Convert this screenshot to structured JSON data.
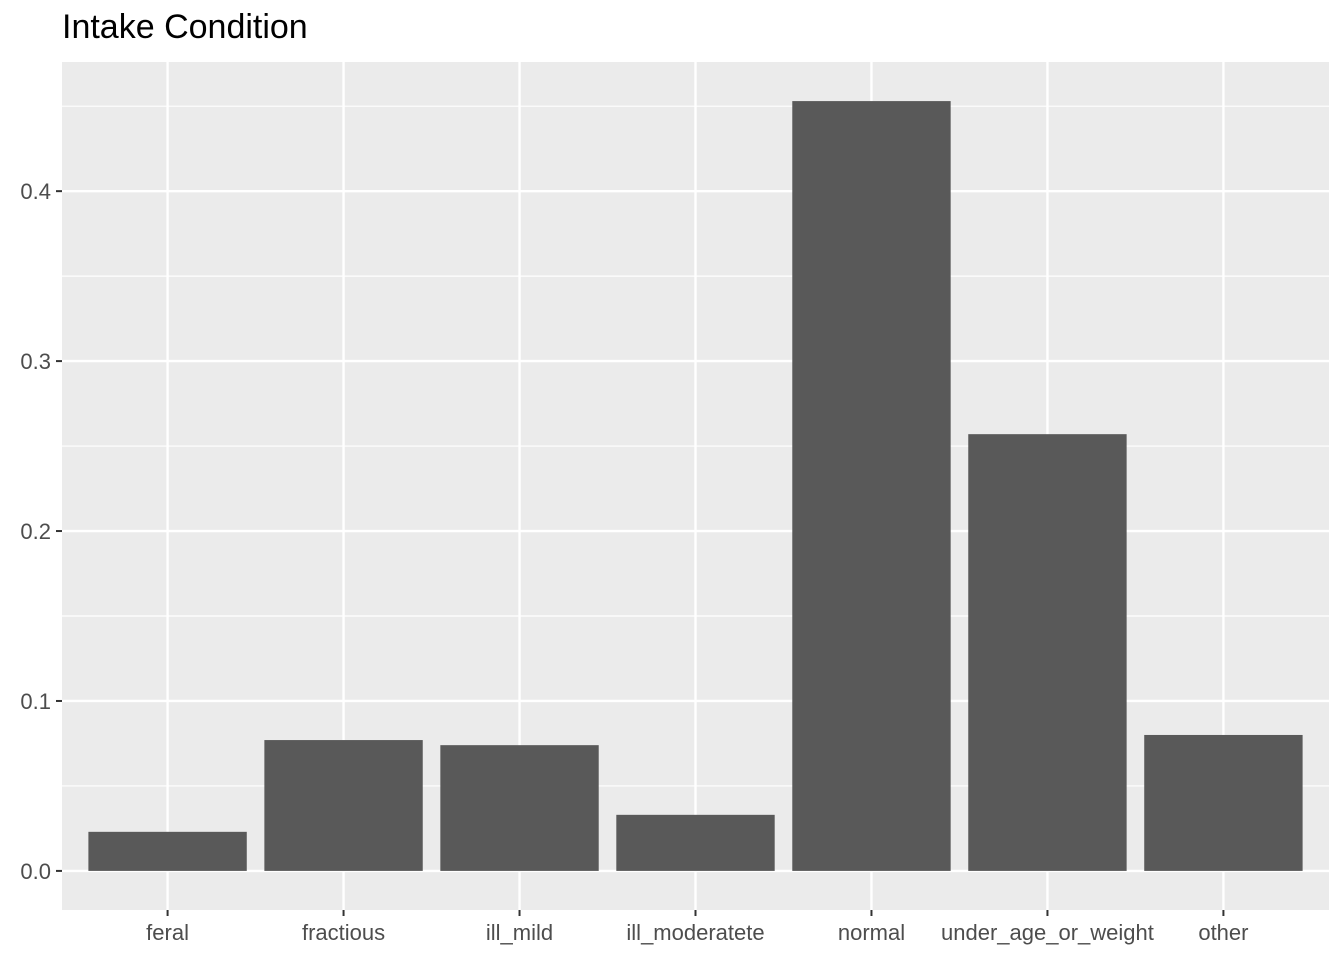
{
  "chart_data": {
    "type": "bar",
    "title": "Intake Condition",
    "xlabel": "",
    "ylabel": "",
    "categories": [
      "feral",
      "fractious",
      "ill_mild",
      "ill_moderatete",
      "normal",
      "under_age_or_weight",
      "other"
    ],
    "values": [
      0.023,
      0.077,
      0.074,
      0.033,
      0.453,
      0.257,
      0.08
    ],
    "ylim": [
      -0.023,
      0.476
    ],
    "yticks": [
      0.0,
      0.1,
      0.2,
      0.3,
      0.4
    ],
    "ytick_labels": [
      "0.0",
      "0.1",
      "0.2",
      "0.3",
      "0.4"
    ],
    "grid": true,
    "legend": "none",
    "colors": {
      "bar": "#595959",
      "panel": "#ebebeb",
      "grid": "#ffffff",
      "tick_text": "#4d4d4d",
      "tick_mark": "#333333"
    }
  }
}
